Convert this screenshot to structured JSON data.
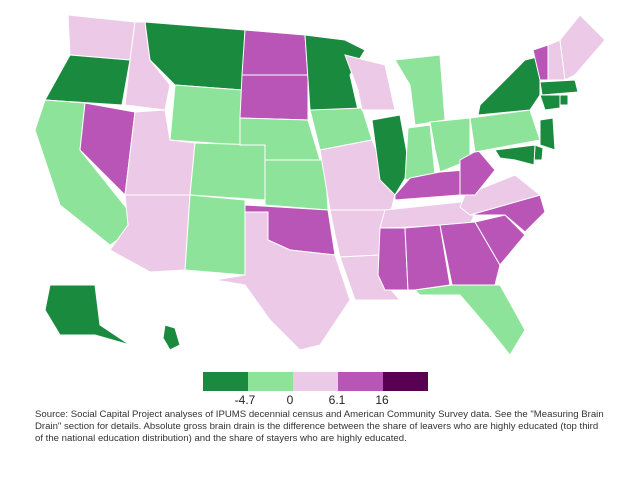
{
  "legend": {
    "colors": [
      "#1a8a3e",
      "#8ee39a",
      "#ecc9e6",
      "#b955b6",
      "#5a0052"
    ],
    "labels": [
      "-4.7",
      "0",
      "6.1",
      "16"
    ]
  },
  "states": {
    "WA": 2,
    "OR": 0,
    "CA": 1,
    "NV": 3,
    "ID": 2,
    "MT": 0,
    "WY": 1,
    "UT": 2,
    "AZ": 2,
    "CO": 1,
    "NM": 1,
    "ND": 3,
    "SD": 3,
    "NE": 1,
    "KS": 1,
    "OK": 3,
    "TX": 2,
    "MN": 0,
    "IA": 1,
    "MO": 2,
    "AR": 2,
    "LA": 2,
    "WI": 2,
    "IL": 0,
    "MI": 1,
    "IN": 1,
    "OH": 1,
    "KY": 3,
    "TN": 2,
    "MS": 3,
    "AL": 3,
    "GA": 3,
    "FL": 1,
    "SC": 3,
    "NC": 3,
    "VA": 2,
    "WV": 3,
    "PA": 1,
    "NY": 0,
    "VT": 3,
    "NH": 2,
    "ME": 2,
    "MA": 0,
    "CT": 0,
    "RI": 0,
    "NJ": 0,
    "DE": 0,
    "MD": 0,
    "AK": 0,
    "HI": 0
  },
  "source": "Source: Social Capital Project analyses of IPUMS decennial census and American Community Survey data. See the \"Measuring Brain Drain\" section for details. Absolute gross brain drain is the difference between the share of leavers who are highly educated (top third of the national education distribution) and the share of stayers who are highly educated."
}
